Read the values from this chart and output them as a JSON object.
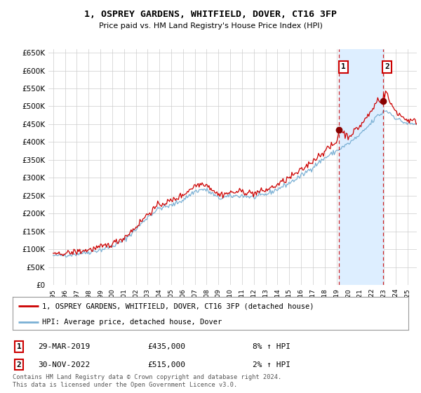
{
  "title": "1, OSPREY GARDENS, WHITFIELD, DOVER, CT16 3FP",
  "subtitle": "Price paid vs. HM Land Registry's House Price Index (HPI)",
  "ylim": [
    0,
    660000
  ],
  "ytick_vals": [
    0,
    50000,
    100000,
    150000,
    200000,
    250000,
    300000,
    350000,
    400000,
    450000,
    500000,
    550000,
    600000,
    650000
  ],
  "background_color": "#ffffff",
  "plot_bg_color": "#ffffff",
  "grid_color": "#cccccc",
  "hpi_line_color": "#7ab0d4",
  "price_line_color": "#cc0000",
  "shade_color": "#ddeeff",
  "annotation_color": "#cc0000",
  "sale1_year": 2019.23,
  "sale1_price": 435000,
  "sale2_year": 2022.92,
  "sale2_price": 515000,
  "legend_line1": "1, OSPREY GARDENS, WHITFIELD, DOVER, CT16 3FP (detached house)",
  "legend_line2": "HPI: Average price, detached house, Dover",
  "table_row1_num": "1",
  "table_row1_date": "29-MAR-2019",
  "table_row1_price": "£435,000",
  "table_row1_hpi": "8% ↑ HPI",
  "table_row2_num": "2",
  "table_row2_date": "30-NOV-2022",
  "table_row2_price": "£515,000",
  "table_row2_hpi": "2% ↑ HPI",
  "footnote": "Contains HM Land Registry data © Crown copyright and database right 2024.\nThis data is licensed under the Open Government Licence v3.0."
}
